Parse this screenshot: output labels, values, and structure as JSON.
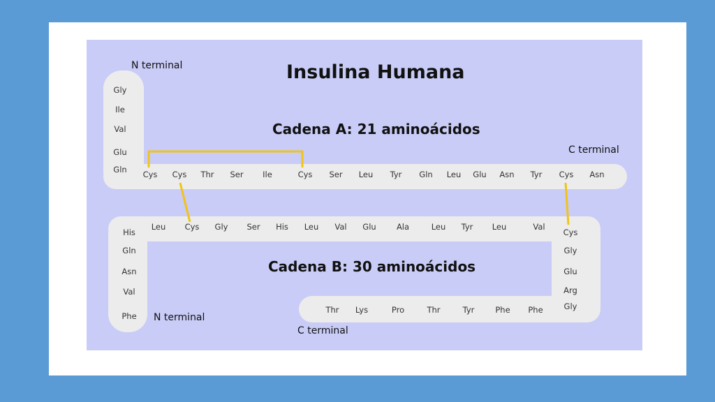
{
  "title": "Insulina Humana",
  "chain_a": {
    "label": "Cadena A: 21 aminoácidos",
    "n_terminal": "N terminal",
    "c_terminal": "C terminal",
    "vertical": [
      "Gly",
      "Ile",
      "Val",
      "Glu",
      "Gln"
    ],
    "horizontal": [
      "Cys",
      "Cys",
      "Thr",
      "Ser",
      "Ile",
      "Cys",
      "Ser",
      "Leu",
      "Tyr",
      "Gln",
      "Leu",
      "Glu",
      "Asn",
      "Tyr",
      "Cys",
      "Asn"
    ]
  },
  "chain_b": {
    "label": "Cadena B: 30 aminoácidos",
    "n_terminal": "N terminal",
    "c_terminal": "C terminal",
    "left_vertical": [
      "His",
      "Gln",
      "Asn",
      "Val",
      "Phe"
    ],
    "top": [
      "Leu",
      "Cys",
      "Gly",
      "Ser",
      "His",
      "Leu",
      "Val",
      "Glu",
      "Ala",
      "Leu",
      "Tyr",
      "Leu",
      "Val"
    ],
    "right_vertical": [
      "Cys",
      "Gly",
      "Glu",
      "Arg",
      "Gly"
    ],
    "bottom": [
      "Thr",
      "Lys",
      "Pro",
      "Thr",
      "Tyr",
      "Phe",
      "Phe"
    ]
  },
  "colors": {
    "background": "#5b9bd5",
    "panel": "#c9ccf7",
    "chain": "#ececec",
    "disulfide": "#f0c419"
  }
}
